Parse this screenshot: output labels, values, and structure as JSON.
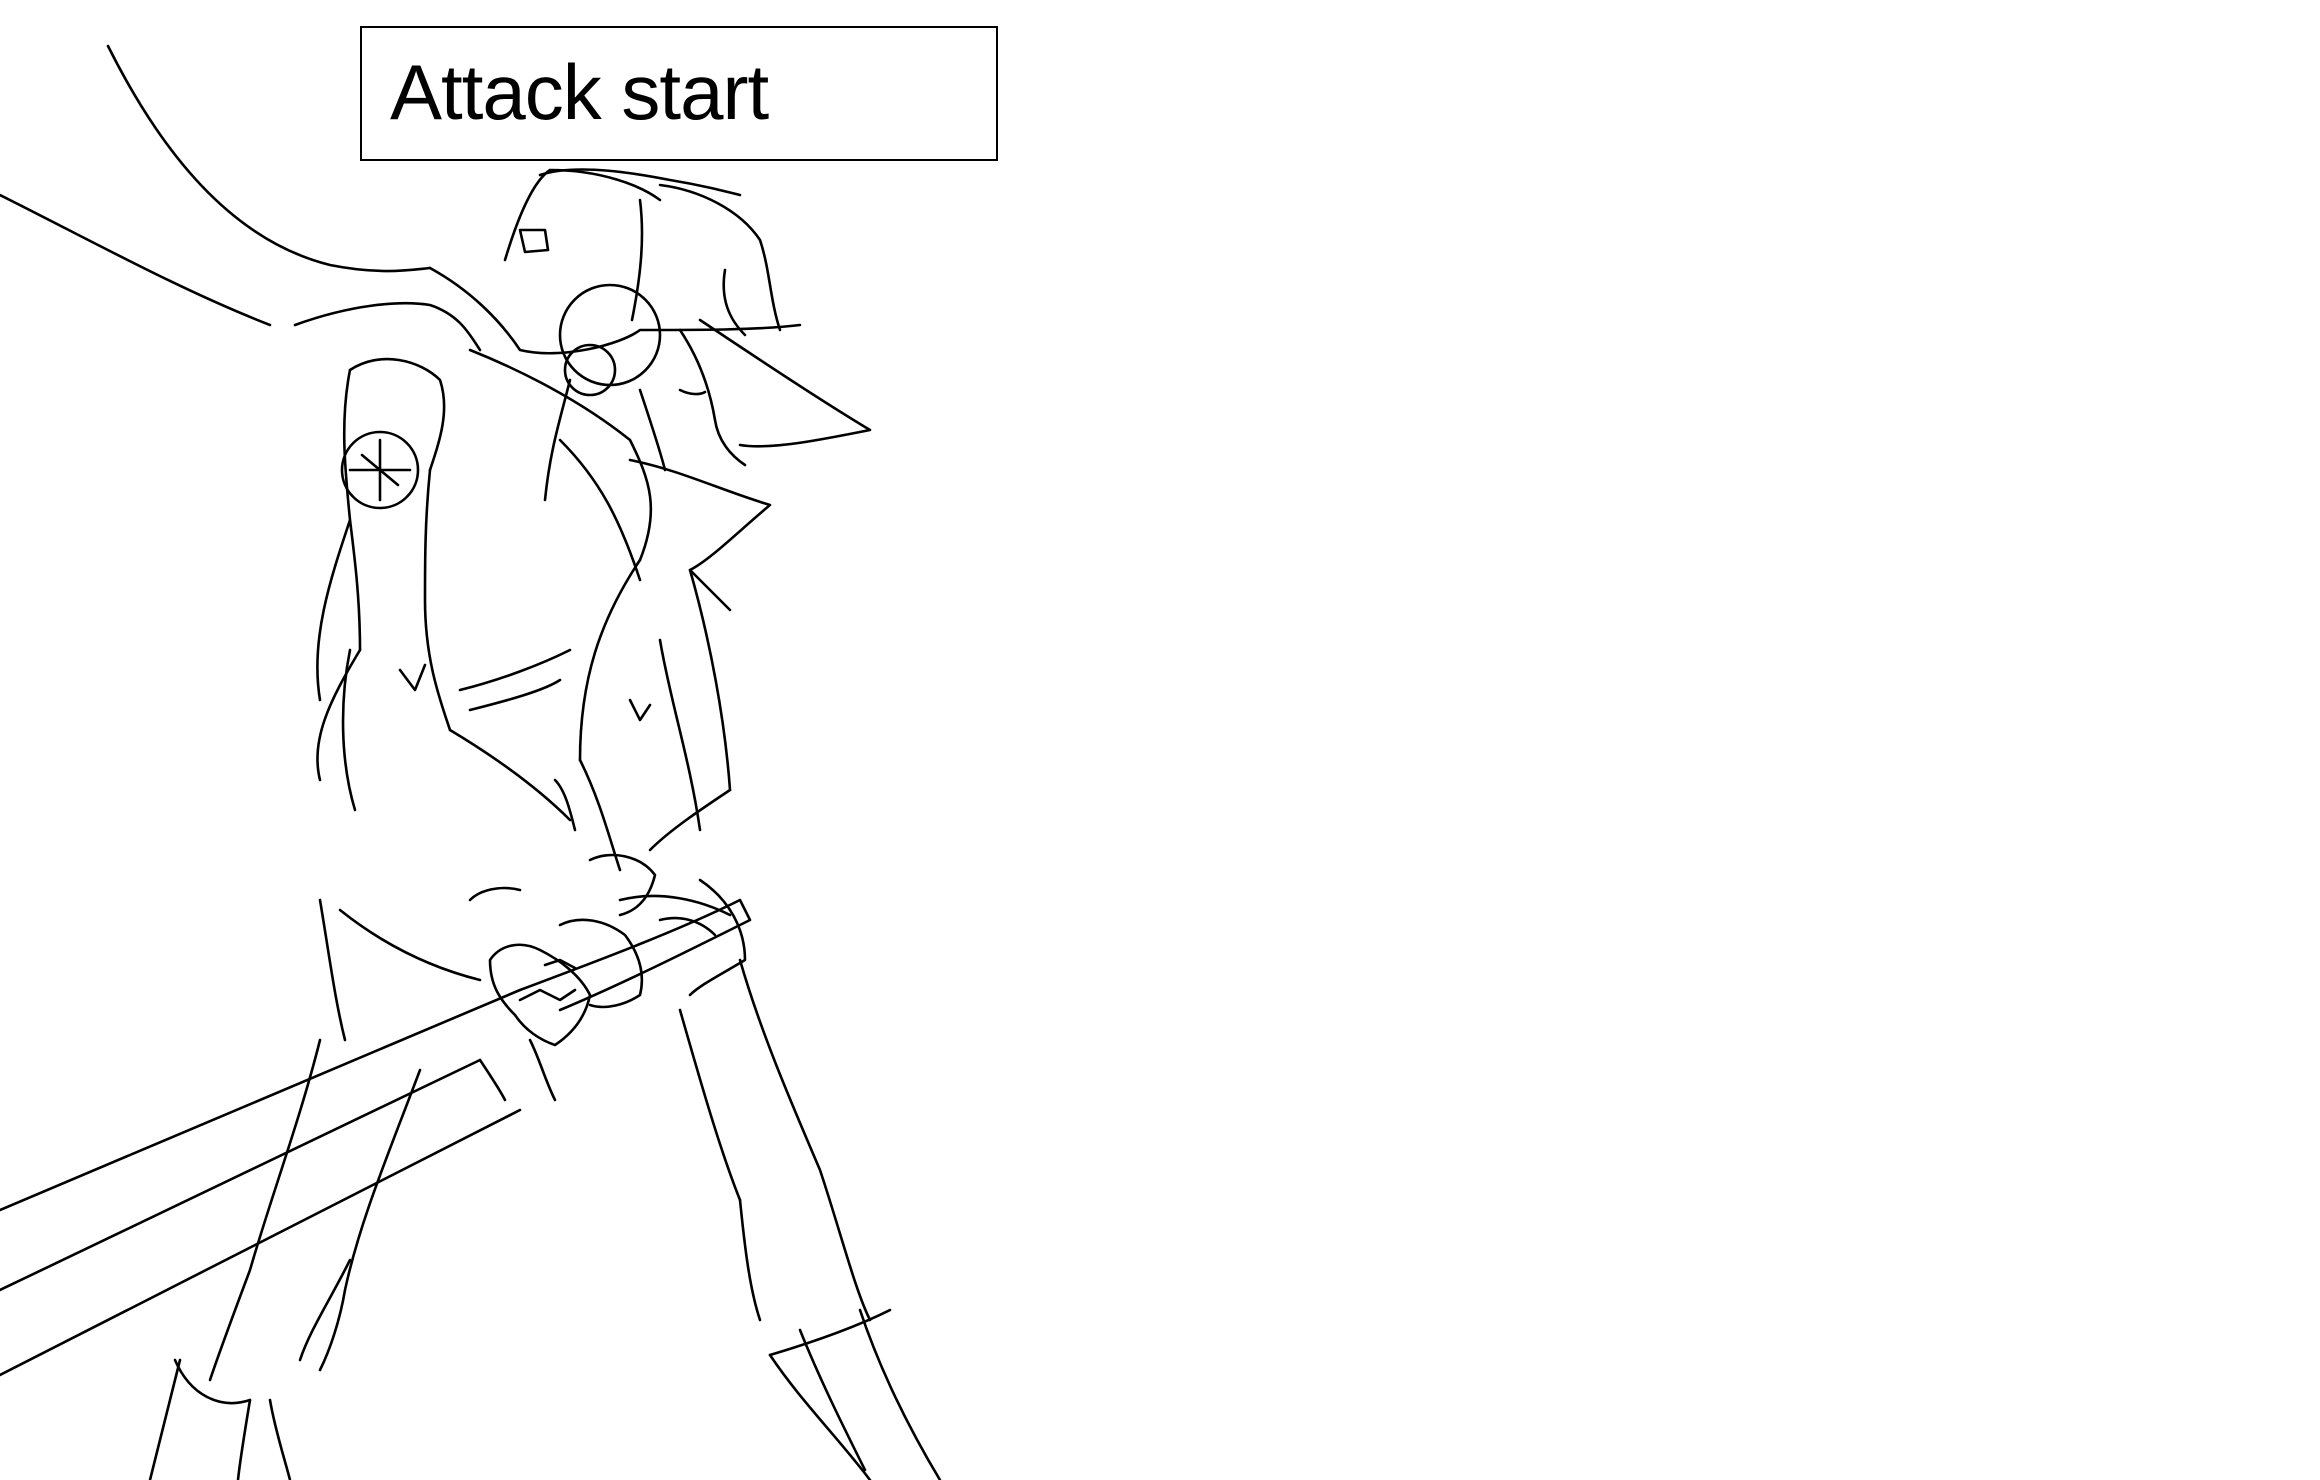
{
  "caption": {
    "text": "Attack start"
  },
  "colors": {
    "background": "#ffffff",
    "ink": "#000000"
  }
}
